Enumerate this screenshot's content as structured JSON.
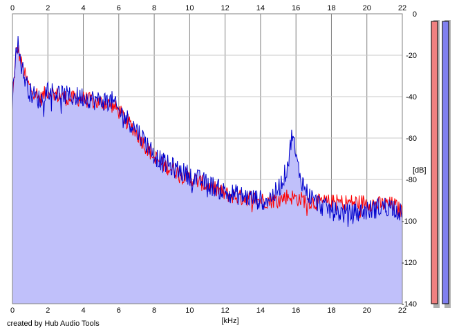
{
  "footer": {
    "credit": "created by Hub Audio Tools"
  },
  "chart_data": {
    "type": "area",
    "title": "",
    "xlabel": "[kHz]",
    "ylabel": "[dB]",
    "xlim": [
      0,
      22
    ],
    "ylim": [
      -140,
      0
    ],
    "x_ticks": [
      0,
      2,
      4,
      6,
      8,
      10,
      12,
      14,
      16,
      18,
      20,
      22
    ],
    "y_ticks": [
      0,
      -20,
      -40,
      -60,
      -80,
      -100,
      -120,
      -140
    ],
    "grid": true,
    "legend": "none",
    "colors": {
      "fill": "#c0c0fa",
      "red": "#ff0000",
      "blue": "#0000cc",
      "meter_left": "#f08080",
      "meter_right": "#8080f0"
    },
    "series": [
      {
        "color": "red",
        "x": [
          0,
          0.1,
          0.2,
          0.3,
          0.4,
          0.6,
          0.8,
          1,
          1.3,
          1.6,
          2,
          2.4,
          2.8,
          3.2,
          3.6,
          4,
          4.4,
          4.8,
          5.2,
          5.6,
          6,
          6.4,
          6.8,
          7.2,
          7.6,
          8,
          8.5,
          9,
          9.5,
          10,
          10.5,
          11,
          11.5,
          12,
          12.5,
          13,
          13.5,
          14,
          14.5,
          15,
          15.5,
          16,
          16.5,
          17,
          17.5,
          18,
          18.5,
          19,
          19.5,
          20,
          20.5,
          21,
          21.5,
          22
        ],
        "y": [
          -42,
          -30,
          -20,
          -16,
          -20,
          -27,
          -32,
          -36,
          -38,
          -41,
          -37,
          -39,
          -40,
          -41,
          -41,
          -41,
          -42,
          -43,
          -43,
          -44,
          -47,
          -51,
          -55,
          -60,
          -65,
          -69,
          -73,
          -75,
          -77,
          -79,
          -81,
          -83,
          -85,
          -87,
          -88,
          -89,
          -89,
          -90,
          -90,
          -90,
          -88,
          -89,
          -90,
          -91,
          -91,
          -91,
          -91,
          -91,
          -91,
          -91,
          -92,
          -92,
          -92,
          -96
        ]
      },
      {
        "color": "blue",
        "x": [
          0,
          0.1,
          0.2,
          0.3,
          0.4,
          0.6,
          0.8,
          1,
          1.3,
          1.6,
          2,
          2.4,
          2.8,
          3.2,
          3.6,
          4,
          4.4,
          4.8,
          5.2,
          5.6,
          6,
          6.4,
          6.8,
          7.2,
          7.6,
          8,
          8.5,
          9,
          9.5,
          10,
          10.5,
          11,
          11.5,
          12,
          12.5,
          13,
          13.5,
          14,
          14.5,
          14.8,
          15.1,
          15.4,
          15.6,
          15.8,
          16,
          16.3,
          16.6,
          17,
          17.5,
          18,
          18.5,
          19,
          19.5,
          20,
          20.5,
          21,
          21.5,
          22
        ],
        "y": [
          -44,
          -28,
          -15,
          -14,
          -20,
          -28,
          -34,
          -38,
          -40,
          -42,
          -36,
          -38,
          -39,
          -40,
          -40,
          -40,
          -41,
          -42,
          -42,
          -42,
          -47,
          -50,
          -54,
          -58,
          -63,
          -68,
          -72,
          -74,
          -76,
          -78,
          -80,
          -82,
          -84,
          -86,
          -87,
          -88,
          -89,
          -90,
          -89,
          -87,
          -83,
          -77,
          -70,
          -56,
          -70,
          -80,
          -86,
          -90,
          -93,
          -95,
          -96,
          -97,
          -96,
          -95,
          -94,
          -93,
          -93,
          -97
        ]
      }
    ],
    "meters": {
      "left_db": -2,
      "right_db": -2
    }
  }
}
